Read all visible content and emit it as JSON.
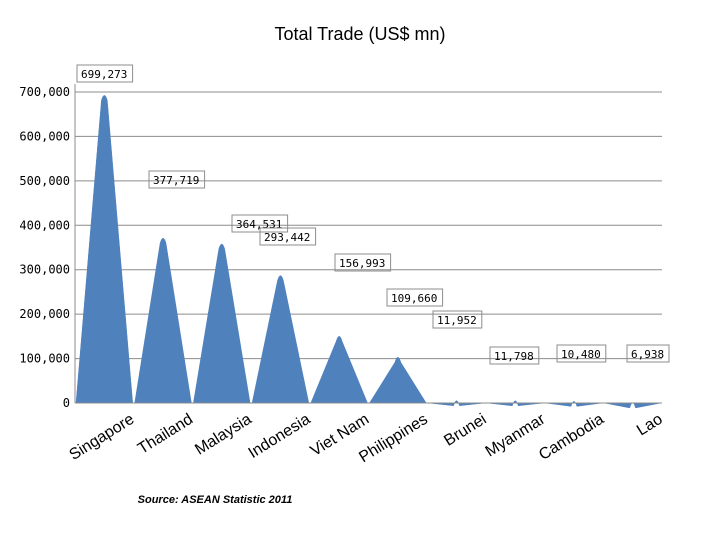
{
  "chart_data": {
    "type": "area",
    "title": "Total Trade (US$ mn)",
    "source": "Source: ASEAN Statistic  2011",
    "categories": [
      "Singapore",
      "Thailand",
      "Malaysia",
      "Indonesia",
      "Viet Nam",
      "Philippines",
      "Brunei",
      "Myanmar",
      "Cambodia",
      "Lao"
    ],
    "values": [
      699273,
      377719,
      364531,
      293442,
      156993,
      109660,
      11952,
      11798,
      10480,
      6938
    ],
    "data_labels": [
      "699,273",
      "377,719",
      "364,531",
      "293,442",
      "156,993",
      "109,660",
      "11,952",
      "11,798",
      "10,480",
      "6,938"
    ],
    "yticks": [
      0,
      100000,
      200000,
      300000,
      400000,
      500000,
      600000,
      700000
    ],
    "ytick_labels": [
      "0",
      "100,000",
      "200,000",
      "300,000",
      "400,000",
      "500,000",
      "600,000",
      "700,000"
    ],
    "ylim": [
      0,
      700000
    ],
    "grid": true,
    "legend": "none",
    "colors": {
      "fill": "#4f81bd",
      "grid": "#8c8c8c",
      "label_border": "#8c8c8c"
    }
  }
}
